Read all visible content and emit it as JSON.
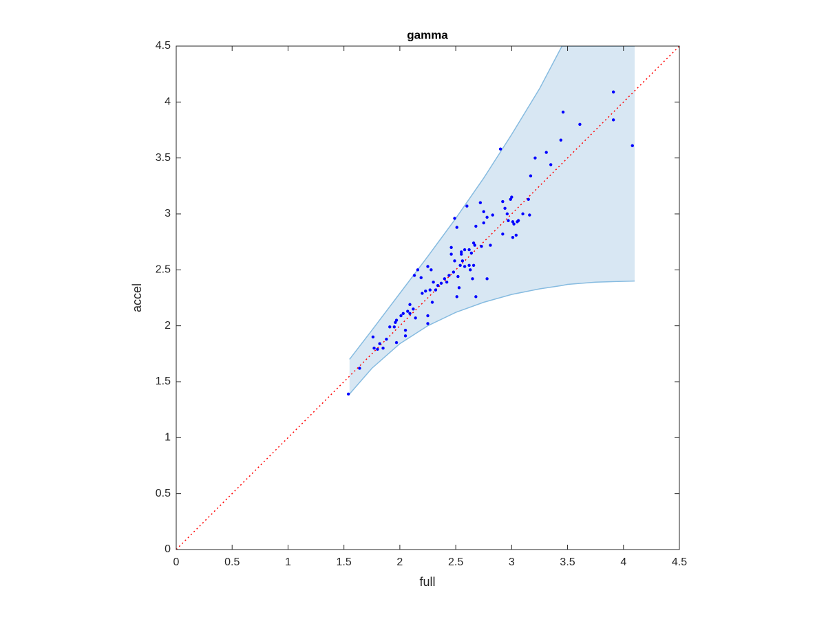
{
  "chart_data": {
    "type": "scatter",
    "title": "gamma",
    "xlabel": "full",
    "ylabel": "accel",
    "xlim": [
      0,
      4.5
    ],
    "ylim": [
      0,
      4.5
    ],
    "xticks": [
      0,
      0.5,
      1,
      1.5,
      2,
      2.5,
      3,
      3.5,
      4,
      4.5
    ],
    "yticks": [
      0,
      0.5,
      1,
      1.5,
      2,
      2.5,
      3,
      3.5,
      4,
      4.5
    ],
    "band": {
      "color": "#d8e7f3",
      "edge_color": "#86bbe0",
      "x": [
        1.55,
        1.75,
        2.0,
        2.25,
        2.5,
        2.75,
        3.0,
        3.25,
        3.45,
        3.5,
        3.75,
        4.1
      ],
      "upper": [
        1.7,
        1.96,
        2.29,
        2.62,
        2.96,
        3.32,
        3.71,
        4.12,
        4.5,
        4.5,
        4.5,
        4.5
      ],
      "lower": [
        1.39,
        1.62,
        1.84,
        2.0,
        2.12,
        2.21,
        2.28,
        2.33,
        2.36,
        2.37,
        2.39,
        2.4
      ]
    },
    "reference": {
      "color": "#ff0000",
      "x": [
        0,
        4.5
      ],
      "y": [
        0,
        4.5
      ]
    },
    "color": "#0000ff",
    "x": [
      1.54,
      1.64,
      1.76,
      1.77,
      1.8,
      1.82,
      1.85,
      1.88,
      1.91,
      1.95,
      1.96,
      1.97,
      1.97,
      2.01,
      2.03,
      2.05,
      2.05,
      2.07,
      2.09,
      2.09,
      2.12,
      2.14,
      2.13,
      2.16,
      2.19,
      2.2,
      2.23,
      2.25,
      2.25,
      2.25,
      2.27,
      2.28,
      2.29,
      2.3,
      2.32,
      2.34,
      2.37,
      2.4,
      2.42,
      2.44,
      2.46,
      2.46,
      2.48,
      2.49,
      2.49,
      2.51,
      2.51,
      2.52,
      2.53,
      2.54,
      2.55,
      2.55,
      2.56,
      2.58,
      2.58,
      2.6,
      2.62,
      2.62,
      2.63,
      2.64,
      2.65,
      2.66,
      2.66,
      2.67,
      2.68,
      2.68,
      2.72,
      2.73,
      2.75,
      2.75,
      2.78,
      2.78,
      2.81,
      2.83,
      2.9,
      2.92,
      2.92,
      2.94,
      2.96,
      2.97,
      2.99,
      3.0,
      3.01,
      3.01,
      3.02,
      3.04,
      3.05,
      3.06,
      3.1,
      3.15,
      3.16,
      3.17,
      3.21,
      3.31,
      3.35,
      3.44,
      3.46,
      3.61,
      3.91,
      3.91,
      4.08
    ],
    "y": [
      1.39,
      1.62,
      1.9,
      1.8,
      1.79,
      1.84,
      1.8,
      1.88,
      1.99,
      1.99,
      2.03,
      2.05,
      1.85,
      2.09,
      2.11,
      1.96,
      1.91,
      2.13,
      2.19,
      2.11,
      2.15,
      2.07,
      2.45,
      2.5,
      2.43,
      2.29,
      2.31,
      2.53,
      2.09,
      2.02,
      2.32,
      2.5,
      2.21,
      2.39,
      2.32,
      2.36,
      2.38,
      2.42,
      2.39,
      2.45,
      2.7,
      2.64,
      2.48,
      2.96,
      2.58,
      2.88,
      2.26,
      2.44,
      2.34,
      2.54,
      2.64,
      2.66,
      2.58,
      2.68,
      2.53,
      3.07,
      2.54,
      2.68,
      2.5,
      2.65,
      2.42,
      2.54,
      2.74,
      2.72,
      2.26,
      2.89,
      3.1,
      2.71,
      2.92,
      3.02,
      2.42,
      2.97,
      2.72,
      2.99,
      3.58,
      3.11,
      2.82,
      3.05,
      3.0,
      2.94,
      3.13,
      3.15,
      2.79,
      2.93,
      2.91,
      2.81,
      2.93,
      2.94,
      3.0,
      3.13,
      2.99,
      3.34,
      3.5,
      3.55,
      3.44,
      3.66,
      3.91,
      3.8,
      4.09,
      3.84,
      3.61
    ]
  }
}
